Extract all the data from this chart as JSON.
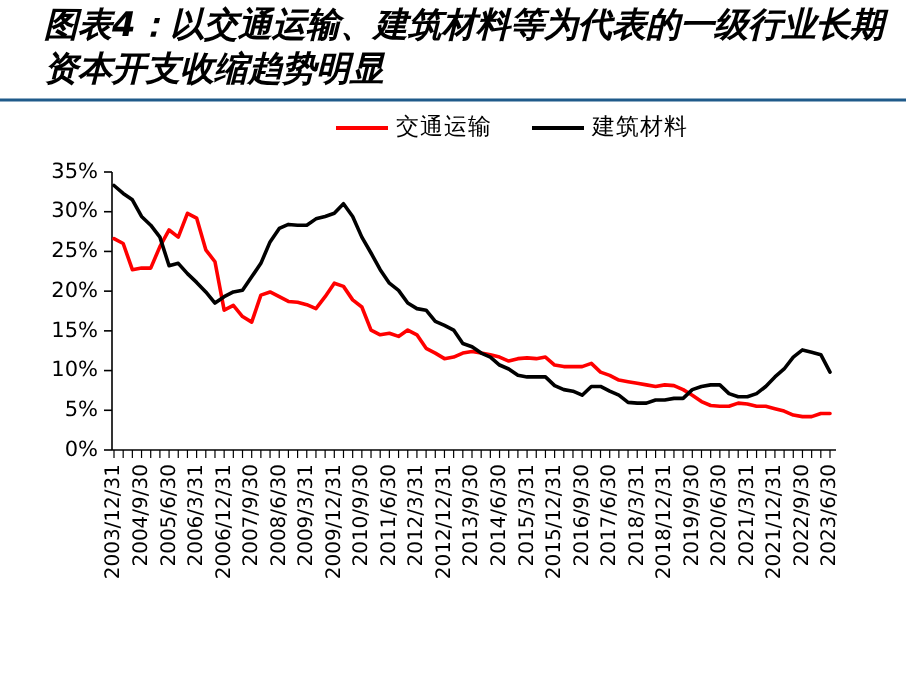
{
  "chart_data": {
    "type": "line",
    "title": "图表4：以交通运输、建筑材料等为代表的一级行业长期资本开支收缩趋势明显",
    "categories": [
      "2003/12/31",
      null,
      null,
      "2004/9/30",
      null,
      null,
      "2005/6/30",
      null,
      null,
      "2006/3/31",
      null,
      null,
      "2006/12/31",
      null,
      null,
      "2007/9/30",
      null,
      null,
      "2008/6/30",
      null,
      null,
      "2009/3/31",
      null,
      null,
      "2009/12/31",
      null,
      null,
      "2010/9/30",
      null,
      null,
      "2011/6/30",
      null,
      null,
      "2012/3/31",
      null,
      null,
      "2012/12/31",
      null,
      null,
      "2013/9/30",
      null,
      null,
      "2014/6/30",
      null,
      null,
      "2015/3/31",
      null,
      null,
      "2015/12/31",
      null,
      null,
      "2016/9/30",
      null,
      null,
      "2017/6/30",
      null,
      null,
      "2018/3/31",
      null,
      null,
      "2018/12/31",
      null,
      null,
      "2019/9/30",
      null,
      null,
      "2020/6/30",
      null,
      null,
      "2021/3/31",
      null,
      null,
      "2021/12/31",
      null,
      null,
      "2022/9/30",
      null,
      null,
      "2023/6/30"
    ],
    "series": [
      {
        "name": "交通运输",
        "color": "#ff0000",
        "values": [
          26.6,
          26.0,
          22.7,
          22.9,
          22.9,
          25.6,
          27.7,
          26.8,
          29.8,
          29.2,
          25.2,
          23.7,
          17.6,
          18.2,
          16.8,
          16.1,
          19.5,
          19.9,
          19.3,
          18.7,
          18.6,
          18.3,
          17.8,
          19.3,
          21.0,
          20.6,
          18.9,
          18.0,
          15.1,
          14.5,
          14.7,
          14.3,
          15.1,
          14.5,
          12.8,
          12.2,
          11.5,
          11.7,
          12.2,
          12.4,
          12.2,
          12.0,
          11.7,
          11.2,
          11.5,
          11.6,
          11.5,
          11.7,
          10.7,
          10.5,
          10.5,
          10.5,
          10.9,
          9.8,
          9.4,
          8.8,
          8.6,
          8.4,
          8.2,
          8.0,
          8.2,
          8.1,
          7.6,
          6.9,
          6.1,
          5.6,
          5.5,
          5.5,
          5.9,
          5.8,
          5.5,
          5.5,
          5.2,
          4.9,
          4.4,
          4.2,
          4.2,
          4.6,
          4.6
        ]
      },
      {
        "name": "建筑材料",
        "color": "#000000",
        "values": [
          33.3,
          32.3,
          31.5,
          29.4,
          28.3,
          26.8,
          23.2,
          23.5,
          22.2,
          21.1,
          19.9,
          18.5,
          19.3,
          19.9,
          20.1,
          21.8,
          23.5,
          26.2,
          27.9,
          28.4,
          28.3,
          28.3,
          29.1,
          29.4,
          29.8,
          31.0,
          29.4,
          26.8,
          24.8,
          22.7,
          21.0,
          20.1,
          18.5,
          17.8,
          17.6,
          16.2,
          15.7,
          15.1,
          13.4,
          13.0,
          12.2,
          11.7,
          10.7,
          10.2,
          9.4,
          9.2,
          9.2,
          9.2,
          8.1,
          7.6,
          7.4,
          6.9,
          8.0,
          8.0,
          7.4,
          6.9,
          6.0,
          5.9,
          5.9,
          6.3,
          6.3,
          6.5,
          6.5,
          7.6,
          8.0,
          8.2,
          8.2,
          7.1,
          6.7,
          6.7,
          7.1,
          8.0,
          9.2,
          10.2,
          11.7,
          12.6,
          12.3,
          12.0,
          9.8
        ]
      }
    ],
    "ylim": [
      0,
      35
    ],
    "yticks": [
      {
        "value": 0,
        "label": "0%"
      },
      {
        "value": 5,
        "label": "5%"
      },
      {
        "value": 10,
        "label": "10%"
      },
      {
        "value": 15,
        "label": "15%"
      },
      {
        "value": 20,
        "label": "20%"
      },
      {
        "value": 25,
        "label": "25%"
      },
      {
        "value": 30,
        "label": "30%"
      },
      {
        "value": 35,
        "label": "35%"
      }
    ],
    "legend": "top",
    "grid": false,
    "marker": "none",
    "line_style": "solid"
  }
}
